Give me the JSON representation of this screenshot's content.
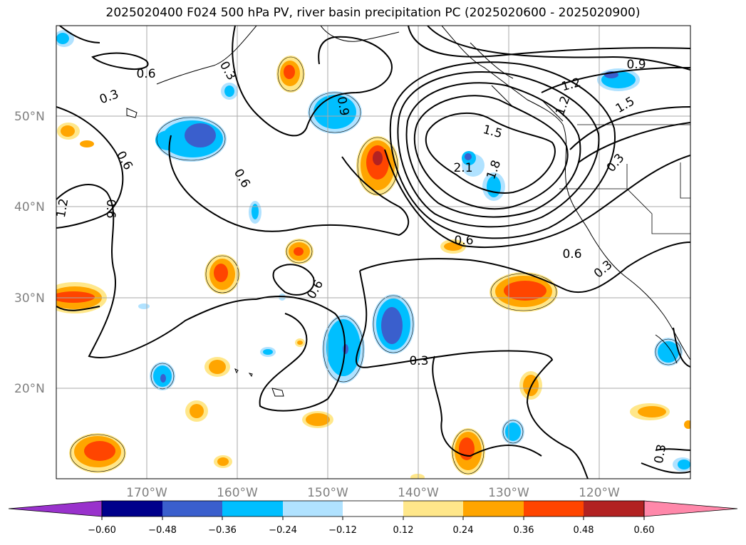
{
  "title": "2025020400 F024 500 hPa PV, river basin precipitation PC (2025020600 - 2025020900)",
  "lat_labels": [
    "50°N",
    "40°N",
    "30°N",
    "20°N"
  ],
  "lon_labels": [
    "170°W",
    "160°W",
    "150°W",
    "140°W",
    "130°W",
    "120°W"
  ],
  "contour_labels": [
    "0.6",
    "0.3",
    "0.6",
    "0.6",
    "0.6",
    "1.2",
    "0.9",
    "0.3",
    "2.1",
    "1.5",
    "1.8",
    "1.2",
    "0.9",
    "1.5",
    "1.2",
    "0.3",
    "0.6",
    "0.6",
    "0.3",
    "0.6",
    "0.3",
    "0.3"
  ],
  "colorbar": {
    "ticks": [
      "−0.60",
      "−0.48",
      "−0.36",
      "−0.24",
      "−0.12",
      "0.12",
      "0.24",
      "0.36",
      "0.48",
      "0.60"
    ],
    "colors": [
      "#9932cc",
      "#00008b",
      "#3a5fcd",
      "#00bfff",
      "#b0e2ff",
      "#ffffff",
      "#ffe78a",
      "#ffa500",
      "#ff4500",
      "#b22222",
      "#ff88aa"
    ]
  }
}
